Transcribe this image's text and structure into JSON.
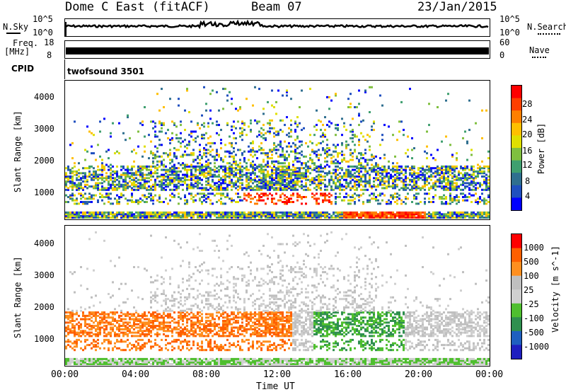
{
  "header": {
    "title": "Dome C East (fitACF)",
    "beam": "Beam 07",
    "date": "23/Jan/2015"
  },
  "top_panels": {
    "nsky_label": "N.Sky",
    "nsky_ticks": [
      "10^5",
      "10^0"
    ],
    "nsearch_label": "N.Search",
    "nsearch_ticks": [
      "10^5",
      "10^0"
    ],
    "freq_label": "Freq.",
    "freq_unit": "[MHz]",
    "freq_ticks": [
      "18",
      "8"
    ],
    "nave_label": "Nave",
    "nave_ticks": [
      "60",
      "0"
    ],
    "cpid_label": "CPID",
    "cpid_value": "twofsound 3501"
  },
  "colors": {
    "power": [
      "#0000ff",
      "#1f4fbf",
      "#2f6f8f",
      "#3f9f6f",
      "#7fbf3f",
      "#dfdf00",
      "#ffbf00",
      "#ff7f00",
      "#ff3f00",
      "#ff0000"
    ],
    "velocity": [
      "#ff0000",
      "#ff5f00",
      "#ff8f1f",
      "#bfbfbf",
      "#cfcfcf",
      "#4fbf2f",
      "#2f8f4f",
      "#1f5fbf",
      "#1f1fbf"
    ]
  },
  "chart_data": [
    {
      "type": "heatmap",
      "ylabel": "Slant Range [km]",
      "yticks": [
        "1000",
        "2000",
        "3000",
        "4000"
      ],
      "ylim": [
        200,
        4500
      ],
      "colorbar_label": "Power [dB]",
      "colorbar_ticks": [
        "4",
        "8",
        "12",
        "16",
        "20",
        "24",
        "28"
      ],
      "colorbar_range": [
        0,
        30
      ]
    },
    {
      "type": "heatmap",
      "ylabel": "Slant Range [km]",
      "yticks": [
        "1000",
        "2000",
        "3000",
        "4000"
      ],
      "ylim": [
        200,
        4500
      ],
      "xlabel": "Time UT",
      "xticks": [
        "00:00",
        "04:00",
        "08:00",
        "12:00",
        "16:00",
        "20:00",
        "00:00"
      ],
      "colorbar_label": "Velocity [m s^-1]",
      "colorbar_ticks": [
        "1000",
        "500",
        "100",
        "25",
        "-25",
        "-100",
        "-500",
        "-1000"
      ]
    }
  ]
}
